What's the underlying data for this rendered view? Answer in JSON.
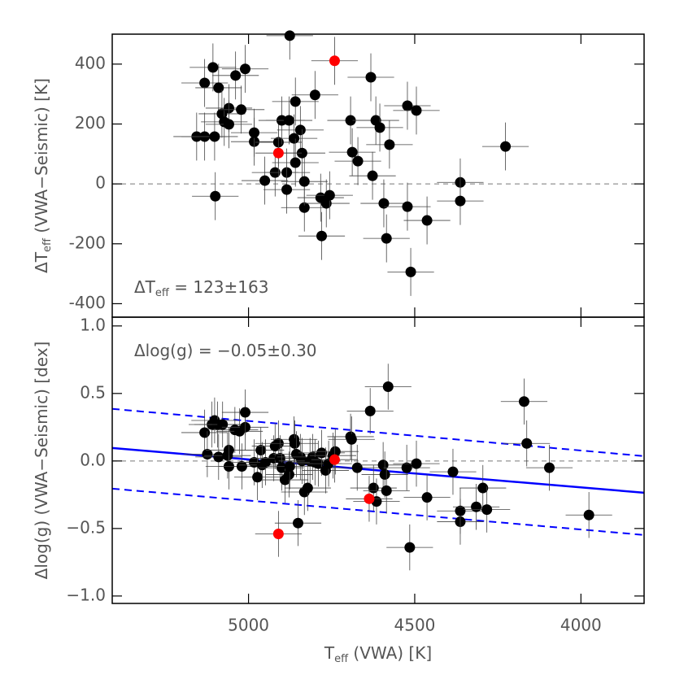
{
  "chart_data": [
    {
      "type": "scatter",
      "ylabel": {
        "main": "ΔT",
        "sub": "eff",
        "rest": " (VWA−Seismic) [K]"
      },
      "annotation": {
        "main": "ΔT",
        "sub": "eff",
        "rest": " = 123±163"
      },
      "xlim": [
        5410,
        3810
      ],
      "xticks": [
        5000,
        4500,
        4000
      ],
      "show_xtick_labels": false,
      "ylim": [
        -445,
        500
      ],
      "yticks": [
        -400,
        -200,
        0,
        200,
        400
      ],
      "reference_line": 0,
      "series": [
        {
          "color": "#000000",
          "xerr": 70,
          "yerr": 80,
          "x": [
            5132,
            5107,
            5156,
            5132,
            5102,
            5090,
            5080,
            5073,
            5059,
            5059,
            5039,
            5022,
            5010,
            4983,
            4983,
            5100,
            4951,
            4920,
            4910,
            4900,
            4885,
            4885,
            4878,
            4876,
            4863,
            4859,
            4859,
            4844,
            4839,
            4832,
            4832,
            4800,
            4783,
            4780,
            4766,
            4756,
            4693,
            4688,
            4671,
            4632,
            4627,
            4617,
            4605,
            4593,
            4585,
            4576,
            4522,
            4522,
            4512,
            4495,
            4463,
            4363,
            4363,
            4227
          ],
          "y": [
            337,
            389,
            158,
            158,
            158,
            321,
            234,
            207,
            253,
            199,
            362,
            248,
            384,
            141,
            171,
            -41,
            11,
            38,
            139,
            212,
            38,
            -19,
            212,
            495,
            152,
            275,
            71,
            180,
            103,
            -79,
            8,
            297,
            -46,
            -174,
            -65,
            -38,
            212,
            106,
            76,
            356,
            27,
            212,
            188,
            -65,
            -182,
            131,
            261,
            -76,
            -294,
            245,
            -122,
            5,
            -57,
            125
          ]
        },
        {
          "color": "#ff0000",
          "xerr": 70,
          "yerr": 80,
          "x": [
            4741,
            4910
          ],
          "y": [
            411,
            103
          ]
        }
      ]
    },
    {
      "type": "scatter",
      "ylabel": {
        "main": "Δlog(g) (VWA−Seismic) [dex]"
      },
      "annotation": {
        "main": "Δlog(g) = −0.05±0.30"
      },
      "xlabel": {
        "main": "T",
        "sub": "eff",
        "rest": " (VWA) [K]"
      },
      "xlim": [
        5410,
        3810
      ],
      "xticks": [
        5000,
        4500,
        4000
      ],
      "show_xtick_labels": true,
      "ylim": [
        -1.055,
        1.065
      ],
      "yticks": [
        {
          "value": -1,
          "label": "−1.0"
        },
        {
          "value": -0.5,
          "label": "−0.5"
        },
        {
          "value": 0,
          "label": "0.0"
        },
        {
          "value": 0.5,
          "label": "0.5"
        },
        {
          "value": 1,
          "label": "1.0"
        }
      ],
      "reference_line": 0,
      "lines": [
        {
          "x": [
            5410,
            3810
          ],
          "y": [
            0.096,
            -0.235
          ],
          "color": "#0000ff",
          "dashed": false
        },
        {
          "x": [
            5410,
            3810
          ],
          "y": [
            0.386,
            0.036
          ],
          "color": "#0000ff",
          "dashed": true
        },
        {
          "x": [
            5410,
            3810
          ],
          "y": [
            -0.205,
            -0.548
          ],
          "color": "#0000ff",
          "dashed": true
        }
      ],
      "series": [
        {
          "color": "#000000",
          "xerr": 70,
          "yerr": 0.17,
          "x": [
            5132,
            5124,
            5110,
            5102,
            5093,
            5090,
            5078,
            5063,
            5059,
            5059,
            5041,
            5027,
            5020,
            5010,
            5010,
            4983,
            4973,
            4963,
            4959,
            4949,
            4924,
            4920,
            4910,
            4905,
            4900,
            4890,
            4878,
            4876,
            4863,
            4861,
            4856,
            4851,
            4844,
            4839,
            4832,
            4822,
            4815,
            4807,
            4800,
            4790,
            4780,
            4768,
            4759,
            4746,
            4739,
            4693,
            4690,
            4673,
            4634,
            4624,
            4615,
            4595,
            4590,
            4585,
            4580,
            4524,
            4515,
            4495,
            4463,
            4385,
            4363,
            4363,
            4315,
            4295,
            4283,
            4171,
            4163,
            4095,
            3976
          ],
          "y": [
            0.21,
            0.05,
            0.27,
            0.3,
            0.27,
            0.03,
            0.27,
            0.04,
            0.08,
            -0.04,
            0.23,
            0.22,
            -0.04,
            0.25,
            0.36,
            -0.01,
            -0.12,
            0.08,
            -0.03,
            -0.01,
            0.02,
            0.11,
            0.13,
            0.02,
            -0.05,
            -0.14,
            -0.1,
            -0.04,
            0.16,
            0.13,
            0.05,
            -0.46,
            0.03,
            0,
            -0.23,
            -0.2,
            0,
            0.03,
            -0.01,
            -0.02,
            0.06,
            -0.07,
            -0.02,
            0.04,
            0.07,
            0.18,
            0.16,
            -0.05,
            0.37,
            -0.2,
            -0.3,
            -0.03,
            -0.1,
            -0.22,
            0.55,
            -0.05,
            -0.64,
            -0.02,
            -0.27,
            -0.08,
            -0.45,
            -0.37,
            -0.34,
            -0.2,
            -0.36,
            0.44,
            0.13,
            -0.05,
            -0.4
          ]
        },
        {
          "color": "#ff0000",
          "xerr": 70,
          "yerr": 0.17,
          "x": [
            4910,
            4741,
            4637
          ],
          "y": [
            -0.54,
            0.01,
            -0.28
          ]
        }
      ]
    }
  ]
}
